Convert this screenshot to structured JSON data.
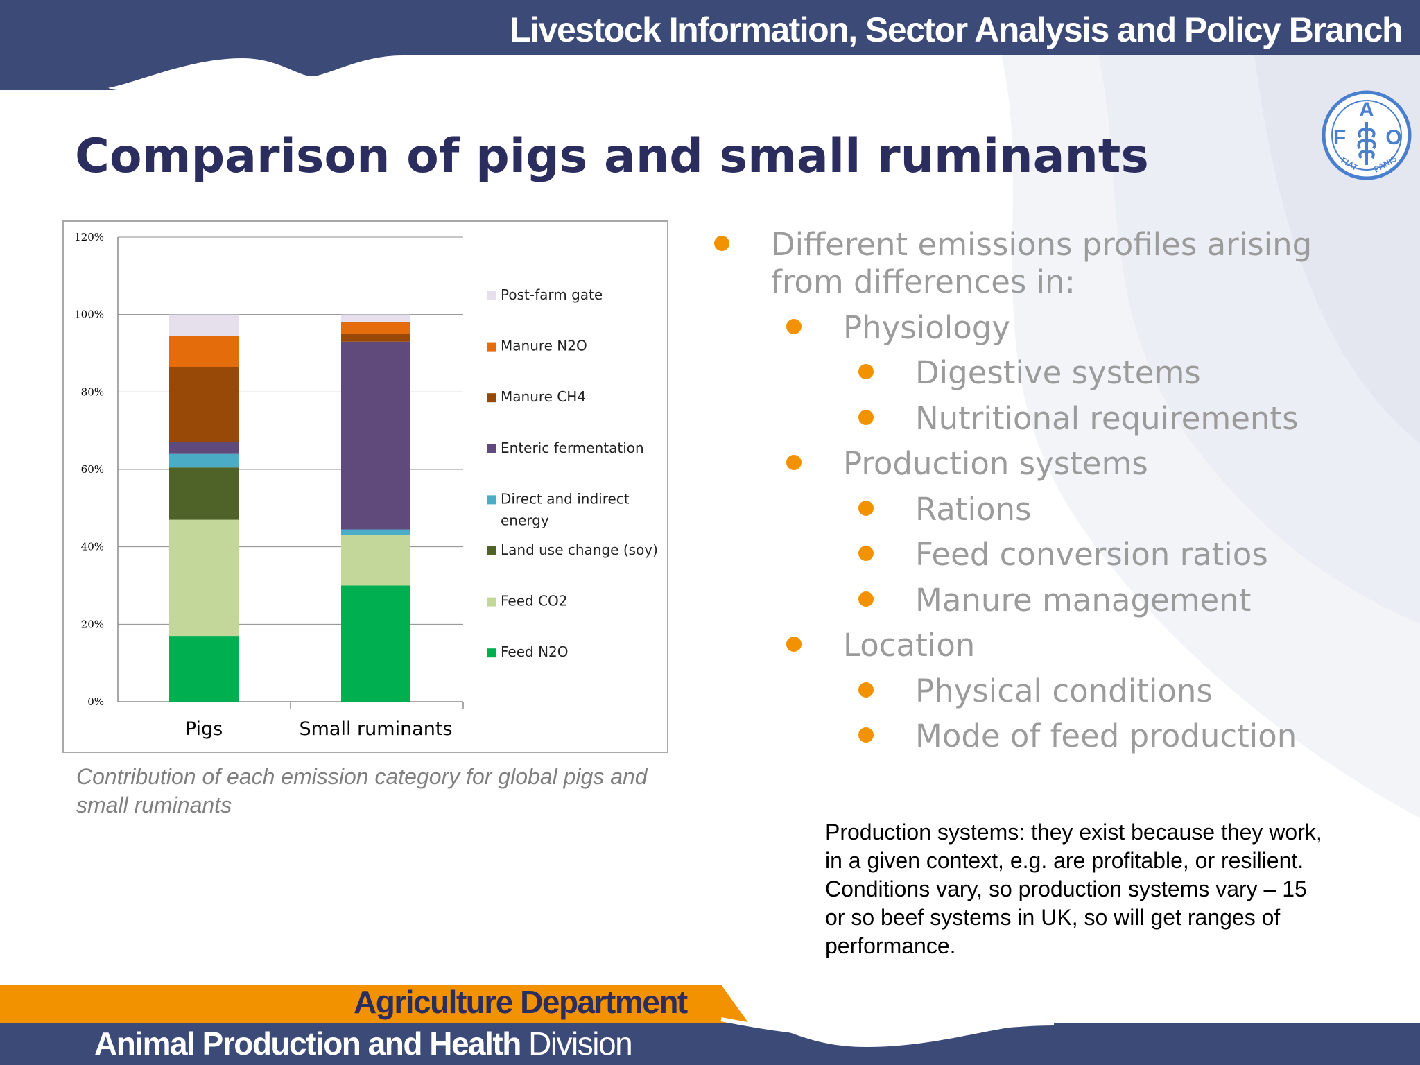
{
  "header": {
    "title": "Livestock Information, Sector Analysis and Policy Branch"
  },
  "slide": {
    "title": "Comparison of pigs and small ruminants"
  },
  "chart_data": {
    "type": "bar",
    "stacked": true,
    "categories": [
      "Pigs",
      "Small ruminants"
    ],
    "ylim": [
      0,
      1.2
    ],
    "yticks": [
      "0%",
      "20%",
      "40%",
      "60%",
      "80%",
      "100%",
      "120%"
    ],
    "grid": true,
    "legend_position": "right",
    "series": [
      {
        "name": "Feed N2O",
        "color": "#00b050",
        "values": [
          0.17,
          0.3
        ]
      },
      {
        "name": "Feed CO2",
        "color": "#c4d79b",
        "values": [
          0.3,
          0.13
        ]
      },
      {
        "name": "Land use change (soy)",
        "color": "#4f6228",
        "values": [
          0.135,
          0.0
        ]
      },
      {
        "name": "Direct and indirect energy",
        "color": "#4bacc6",
        "values": [
          0.035,
          0.015
        ]
      },
      {
        "name": "Enteric fermentation",
        "color": "#604a7b",
        "values": [
          0.03,
          0.485
        ]
      },
      {
        "name": "Manure CH4",
        "color": "#984807",
        "values": [
          0.195,
          0.02
        ]
      },
      {
        "name": "Manure N2O",
        "color": "#e46c0a",
        "values": [
          0.08,
          0.03
        ]
      },
      {
        "name": "Post-farm gate",
        "color": "#e6e0ec",
        "values": [
          0.055,
          0.02
        ]
      }
    ]
  },
  "caption": "Contribution of each emission category for global pigs and small ruminants",
  "bullets": [
    {
      "level": 1,
      "text": "Different emissions profiles arising",
      "cont": "from differences in:"
    },
    {
      "level": 2,
      "text": "Physiology"
    },
    {
      "level": 3,
      "text": "Digestive systems"
    },
    {
      "level": 3,
      "text": "Nutritional requirements"
    },
    {
      "level": 2,
      "text": "Production systems"
    },
    {
      "level": 3,
      "text": "Rations"
    },
    {
      "level": 3,
      "text": "Feed conversion ratios"
    },
    {
      "level": 3,
      "text": "Manure management"
    },
    {
      "level": 2,
      "text": "Location"
    },
    {
      "level": 3,
      "text": "Physical conditions"
    },
    {
      "level": 3,
      "text": "Mode of feed production"
    }
  ],
  "notes": "Production systems: they exist because they work, in a given context, e.g. are profitable, or resilient. Conditions vary, so production systems vary – 15 or so beef systems in UK, so will get ranges of performance.",
  "footer": {
    "department": "Agriculture Department",
    "division_bold": "Animal Production and Health",
    "division_light": "Division"
  },
  "colors": {
    "navy": "#3c4a78",
    "orange": "#f39200",
    "title": "#2b2d5e"
  }
}
